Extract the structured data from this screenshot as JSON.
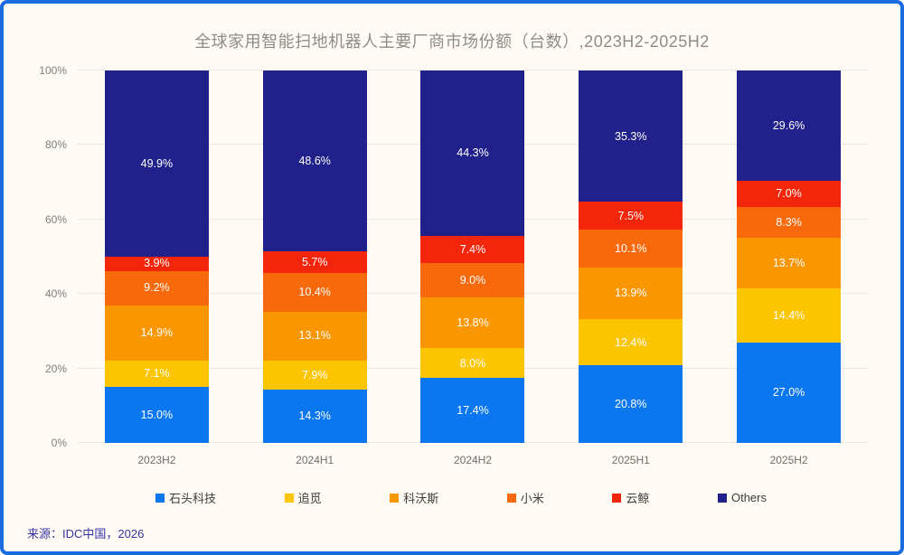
{
  "title": "全球家用智能扫地机器人主要厂商市场份额（台数）,2023H2-2025H2",
  "source": "来源：IDC中国，2026",
  "colors": {
    "background": "#FFFAF4",
    "frame_border": "#1A6BE0",
    "gridline": "#EAE6E1",
    "title_text": "#8F8B86",
    "axis_text": "#7E7E7E",
    "segment_label_text": "#FFFFFF",
    "source_text": "#3434A4"
  },
  "chart_data": {
    "type": "bar",
    "stacked": true,
    "title": "全球家用智能扫地机器人主要厂商市场份额（台数）,2023H2-2025H2",
    "categories": [
      "2023H2",
      "2024H1",
      "2024H2",
      "2025H1",
      "2025H2"
    ],
    "series": [
      {
        "name": "石头科技",
        "color": "#0A77F0",
        "values": [
          15.0,
          14.3,
          17.4,
          20.8,
          27.0
        ]
      },
      {
        "name": "追觅",
        "color": "#FDC400",
        "values": [
          7.1,
          7.9,
          8.0,
          12.4,
          14.4
        ]
      },
      {
        "name": "科沃斯",
        "color": "#FA9600",
        "values": [
          14.9,
          13.1,
          13.8,
          13.9,
          13.7
        ]
      },
      {
        "name": "小米",
        "color": "#F8690B",
        "values": [
          9.2,
          10.4,
          9.0,
          10.1,
          8.3
        ]
      },
      {
        "name": "云鲸",
        "color": "#F3250B",
        "values": [
          3.9,
          5.7,
          7.4,
          7.5,
          7.0
        ]
      },
      {
        "name": "Others",
        "color": "#21218B",
        "values": [
          49.9,
          48.6,
          44.3,
          35.3,
          29.6
        ]
      }
    ],
    "xlabel": "",
    "ylabel": "",
    "ylim": [
      0,
      100
    ],
    "yticks": [
      "0%",
      "20%",
      "40%",
      "60%",
      "80%",
      "100%"
    ],
    "value_suffix": "%",
    "value_decimals": 1,
    "grid": true,
    "legend_position": "bottom"
  }
}
